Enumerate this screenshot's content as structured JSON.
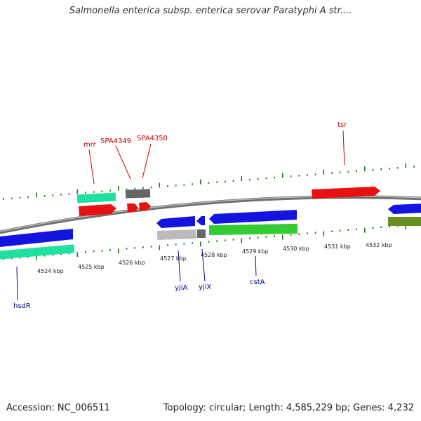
{
  "title": "Salmonella enterica subsp. enterica serovar Paratyphi A str....",
  "footer": {
    "accession": "Accession: NC_006511",
    "summary": "Topology: circular; Length: 4,585,229 bp; Genes: 4,232"
  },
  "colors": {
    "backbone": "#8a8a8a",
    "tick_upper": "#1f7a1f",
    "tick_lower": "#1f7a1f",
    "label_upper": "#cc0000",
    "label_lower": "#000099"
  },
  "scale": {
    "unit": "kbp",
    "labels": [
      "4524 kbp",
      "4525 kbp",
      "4526 kbp",
      "4527 kbp",
      "4528 kbp",
      "4529 kbp",
      "4530 kbp",
      "4531 kbp",
      "4532 kbp"
    ]
  },
  "genes_upper": [
    {
      "name": "mrr",
      "color": "#cc0000"
    },
    {
      "name": "SPA4349",
      "color": "#cc0000"
    },
    {
      "name": "SPA4350",
      "color": "#cc0000"
    },
    {
      "name": "tsr",
      "color": "#cc0000"
    }
  ],
  "genes_lower": [
    {
      "name": "hsdR",
      "color": "#000099"
    },
    {
      "name": "yjiA",
      "color": "#000099"
    },
    {
      "name": "yjiX",
      "color": "#000099"
    },
    {
      "name": "cstA",
      "color": "#000099"
    }
  ],
  "features": {
    "fwd_cds_color": "#e81010",
    "rev_cds_color": "#1414e0",
    "gene_teal": "#20e0a0",
    "gene_gray_dark": "#666666",
    "gene_gray_light": "#bbbbbb",
    "gene_green": "#33cc33",
    "gene_olive": "#6b8e23"
  }
}
